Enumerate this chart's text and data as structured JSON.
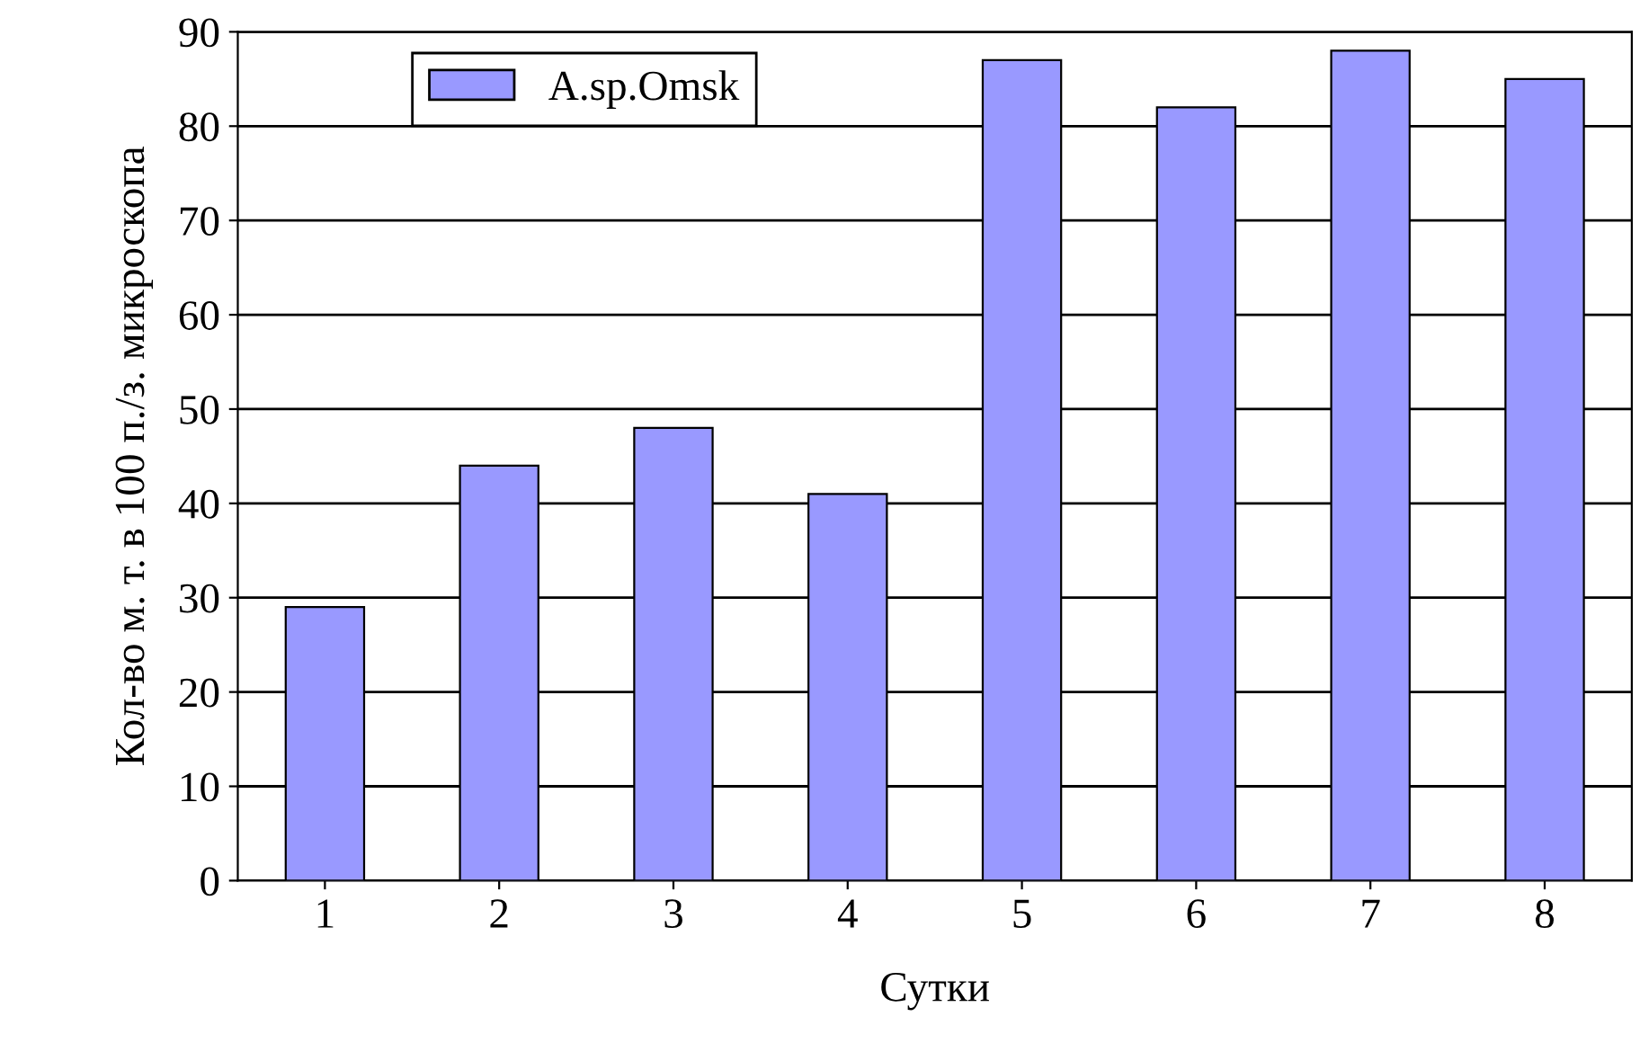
{
  "chart_data": {
    "type": "bar",
    "xlabel": "Сутки",
    "ylabel": "Кол-во м. т. в 100 п./з. микроскопа",
    "categories": [
      "1",
      "2",
      "3",
      "4",
      "5",
      "6",
      "7",
      "8"
    ],
    "series": [
      {
        "name": "A.sp.Omsk",
        "color": "#9999ff",
        "values": [
          29,
          44,
          48,
          41,
          87,
          82,
          88,
          85
        ]
      }
    ],
    "ylim": [
      0,
      90
    ],
    "yticks": [
      0,
      10,
      20,
      30,
      40,
      50,
      60,
      70,
      80,
      90
    ],
    "grid": "y",
    "legend": "top left"
  }
}
